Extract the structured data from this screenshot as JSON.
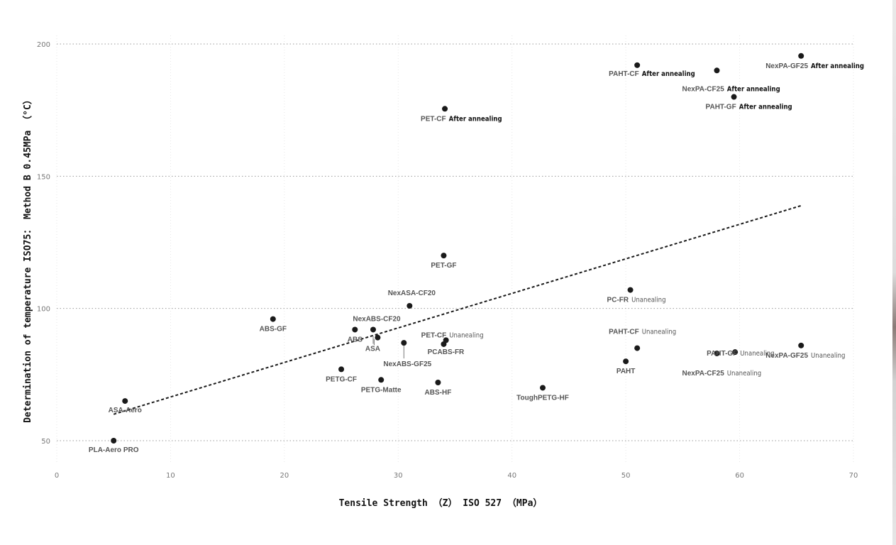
{
  "chart_data": {
    "type": "scatter",
    "xlabel": "Tensile Strength （Z） ISO 527 （MPa）",
    "ylabel": "Determination of temperature ISO75： Method B 0.45MPa （°C）",
    "xlim": [
      0,
      70
    ],
    "ylim": [
      40,
      205
    ],
    "x_ticks": [
      "0",
      "10",
      "20",
      "30",
      "40",
      "50",
      "60",
      "70"
    ],
    "y_ticks": [
      "50",
      "100",
      "150",
      "200"
    ],
    "grid": true,
    "trendline": {
      "style": "dashed",
      "x": [
        5,
        65.5
      ],
      "y": [
        60,
        139
      ]
    },
    "colors": {
      "point": "#1a1a1a",
      "name_label": "#555555",
      "annealing_label": "#111111",
      "trend": "#1a1a1a"
    },
    "points": [
      {
        "name": "PLA-Aero PRO",
        "x": 5,
        "y": 50,
        "condition": ""
      },
      {
        "name": "ASA-Aero",
        "x": 6,
        "y": 65,
        "condition": ""
      },
      {
        "name": "ABS-GF",
        "x": 19,
        "y": 96,
        "condition": ""
      },
      {
        "name": "ABS",
        "x": 26.2,
        "y": 92,
        "condition": ""
      },
      {
        "name": "NexABS-CF20",
        "x": 27.8,
        "y": 92,
        "condition": ""
      },
      {
        "name": "ASA",
        "x": 28.2,
        "y": 89,
        "condition": ""
      },
      {
        "name": "PETG-CF",
        "x": 25,
        "y": 77,
        "condition": ""
      },
      {
        "name": "PETG-Matte",
        "x": 28.5,
        "y": 73,
        "condition": ""
      },
      {
        "name": "NexABS-GF25",
        "x": 30.5,
        "y": 87,
        "condition": ""
      },
      {
        "name": "NexASA-CF20",
        "x": 31,
        "y": 101,
        "condition": ""
      },
      {
        "name": "PET-CF",
        "x": 34.2,
        "y": 88,
        "condition": "Unanealing"
      },
      {
        "name": "PCABS-FR",
        "x": 34,
        "y": 86.5,
        "condition": ""
      },
      {
        "name": "ABS-HF",
        "x": 33.5,
        "y": 72,
        "condition": ""
      },
      {
        "name": "PET-GF",
        "x": 34,
        "y": 120,
        "condition": ""
      },
      {
        "name": "PET-CF",
        "x": 34.1,
        "y": 175.5,
        "condition": "After annealing"
      },
      {
        "name": "ToughPETG-HF",
        "x": 42.7,
        "y": 70,
        "condition": ""
      },
      {
        "name": "PC-FR",
        "x": 50.4,
        "y": 107,
        "condition": "Unanealing"
      },
      {
        "name": "PAHT-CF",
        "x": 51,
        "y": 85,
        "condition": "Unanealing"
      },
      {
        "name": "PAHT",
        "x": 50,
        "y": 80,
        "condition": ""
      },
      {
        "name": "PAHT-CF",
        "x": 51,
        "y": 192,
        "condition": "After annealing"
      },
      {
        "name": "NexPA-CF25",
        "x": 58,
        "y": 190,
        "condition": "After annealing"
      },
      {
        "name": "PAHT-GF",
        "x": 59.5,
        "y": 180,
        "condition": "After annealing"
      },
      {
        "name": "NexPA-GF25",
        "x": 65.4,
        "y": 195.5,
        "condition": "After annealing"
      },
      {
        "name": "PAHT-GF",
        "x": 59.6,
        "y": 83.5,
        "condition": "Unanealing"
      },
      {
        "name": "NexPA-CF25",
        "x": 58,
        "y": 83,
        "condition": "Unanealing"
      },
      {
        "name": "NexPA-GF25",
        "x": 65.4,
        "y": 86,
        "condition": "Unanealing"
      }
    ]
  }
}
